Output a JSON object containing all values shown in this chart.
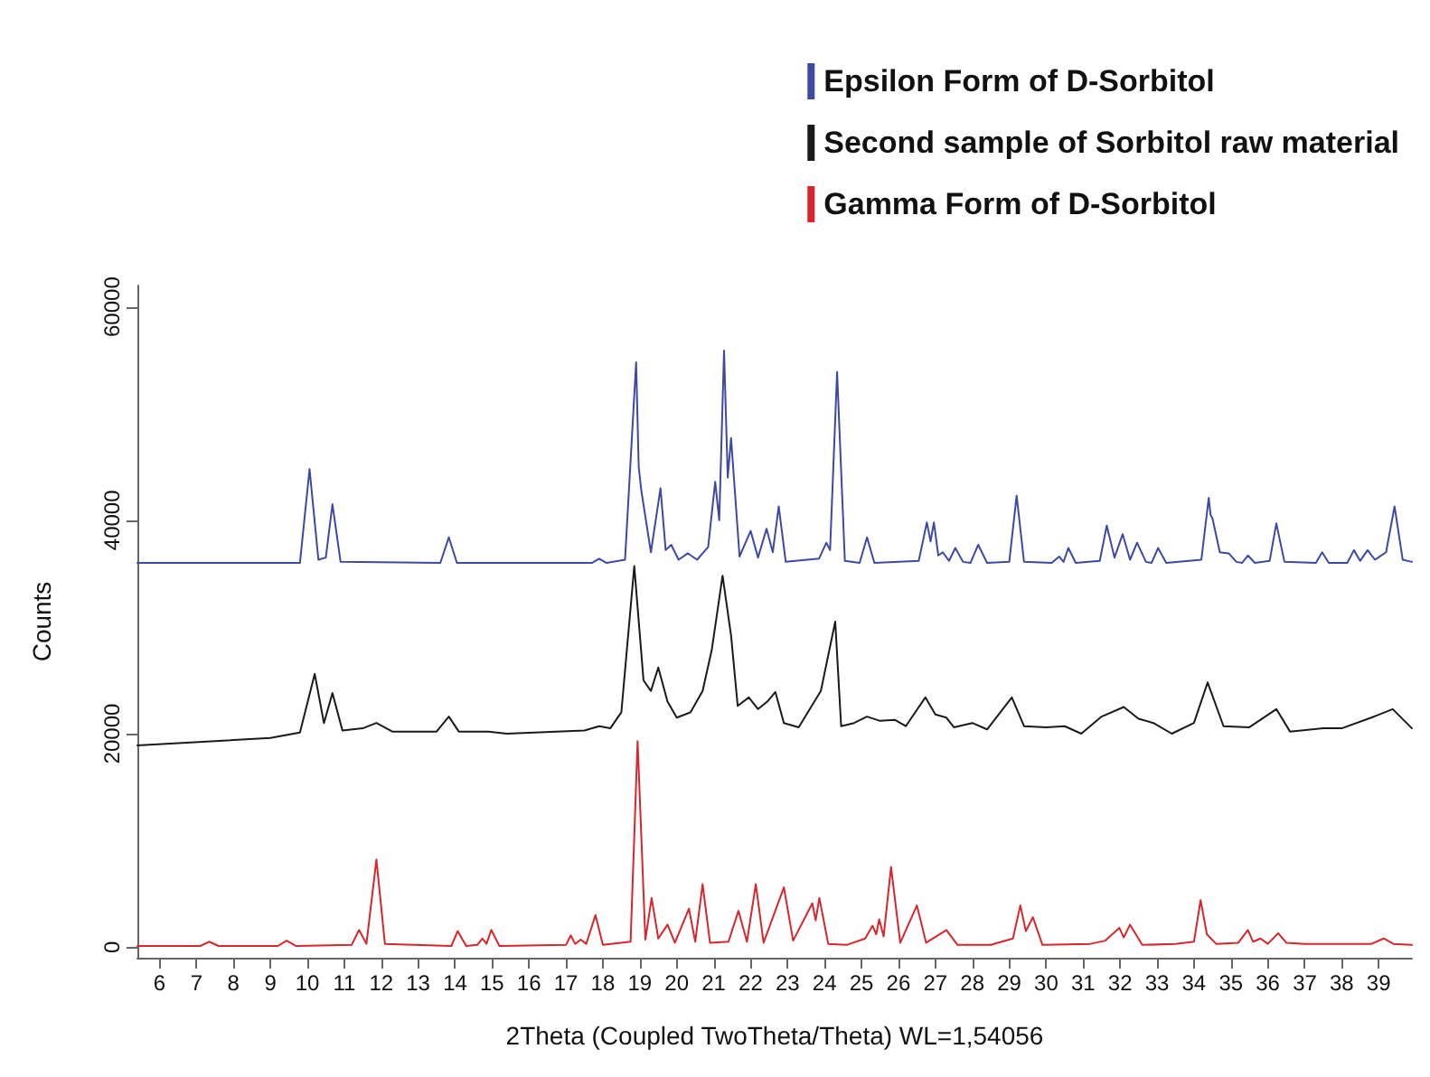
{
  "chart_data": {
    "type": "line",
    "xlabel": "2Theta (Coupled TwoTheta/Theta) WL=1,54056",
    "ylabel": "Counts",
    "xlim": [
      5.4,
      39.9
    ],
    "ylim": [
      -1000,
      62000
    ],
    "xticks": [
      6,
      7,
      8,
      9,
      10,
      11,
      12,
      13,
      14,
      15,
      16,
      17,
      18,
      19,
      20,
      21,
      22,
      23,
      24,
      25,
      26,
      27,
      28,
      29,
      30,
      31,
      32,
      33,
      34,
      35,
      36,
      37,
      38,
      39
    ],
    "yticks": [
      0,
      20000,
      40000,
      60000
    ],
    "grid": false,
    "legend": "top right",
    "marker": "none",
    "line_style": "solid",
    "series": [
      {
        "name": "Epsilon Form of D-Sorbitol",
        "color": "#3c4aa6",
        "x": [
          5.4,
          9.8,
          10.06,
          10.3,
          10.5,
          10.68,
          10.9,
          13.6,
          13.83,
          14.05,
          17.7,
          17.9,
          18.1,
          18.6,
          18.9,
          18.97,
          19.04,
          19.3,
          19.56,
          19.7,
          19.85,
          20.05,
          20.3,
          20.55,
          20.85,
          21.04,
          21.15,
          21.28,
          21.38,
          21.47,
          21.7,
          22.0,
          22.2,
          22.43,
          22.6,
          22.76,
          22.95,
          23.85,
          24.05,
          24.15,
          24.34,
          24.55,
          24.95,
          25.15,
          25.35,
          26.55,
          26.77,
          26.87,
          26.96,
          27.08,
          27.2,
          27.37,
          27.54,
          27.75,
          27.95,
          28.16,
          28.4,
          29.0,
          29.2,
          29.4,
          30.15,
          30.35,
          30.47,
          30.6,
          30.8,
          31.45,
          31.64,
          31.85,
          32.07,
          32.27,
          32.46,
          32.7,
          32.85,
          33.03,
          33.25,
          34.2,
          34.4,
          34.45,
          34.5,
          34.7,
          34.94,
          35.15,
          35.3,
          35.46,
          35.65,
          36.05,
          36.23,
          36.45,
          37.3,
          37.47,
          37.65,
          38.15,
          38.33,
          38.5,
          38.7,
          38.9,
          39.2,
          39.43,
          39.65,
          39.9
        ],
        "values": [
          36000,
          36000,
          44800,
          36300,
          36500,
          41500,
          36100,
          36000,
          38400,
          36000,
          36000,
          36400,
          36000,
          36300,
          54800,
          45000,
          42800,
          37000,
          43000,
          37200,
          37700,
          36300,
          36900,
          36300,
          37500,
          43600,
          40000,
          55900,
          44000,
          47700,
          36600,
          39000,
          36500,
          39200,
          37000,
          41300,
          36100,
          36400,
          37900,
          37200,
          53900,
          36200,
          36000,
          38400,
          36000,
          36200,
          39800,
          38000,
          39800,
          36700,
          37000,
          36200,
          37400,
          36100,
          36000,
          37700,
          36000,
          36100,
          42300,
          36100,
          36000,
          36600,
          36100,
          37400,
          36000,
          36200,
          39500,
          36500,
          38700,
          36300,
          37900,
          36100,
          36000,
          37400,
          36000,
          36300,
          42100,
          40500,
          40200,
          37000,
          36900,
          36100,
          36000,
          36700,
          36000,
          36200,
          39700,
          36100,
          36000,
          37000,
          36000,
          36000,
          37200,
          36200,
          37200,
          36300,
          37000,
          41300,
          36300,
          36100
        ]
      },
      {
        "name": "Second sample of Sorbitol raw material",
        "color": "#1a1a1a",
        "x": [
          5.4,
          9.0,
          9.8,
          10.2,
          10.45,
          10.68,
          10.95,
          11.5,
          11.87,
          12.3,
          13.5,
          13.83,
          14.1,
          14.9,
          15.4,
          17.5,
          17.9,
          18.2,
          18.5,
          18.85,
          19.1,
          19.3,
          19.5,
          19.75,
          20.0,
          20.37,
          20.7,
          20.95,
          21.24,
          21.47,
          21.65,
          21.95,
          22.2,
          22.45,
          22.67,
          22.9,
          23.3,
          23.9,
          24.29,
          24.45,
          24.8,
          25.15,
          25.5,
          25.9,
          26.2,
          26.73,
          27.0,
          27.3,
          27.5,
          28.0,
          28.4,
          29.07,
          29.4,
          30.0,
          30.5,
          30.95,
          31.5,
          32.1,
          32.5,
          32.9,
          33.4,
          34.0,
          34.37,
          34.8,
          35.5,
          36.23,
          36.6,
          37.5,
          38.0,
          38.8,
          39.38,
          39.9
        ],
        "values": [
          18900,
          19600,
          20100,
          25600,
          21000,
          23800,
          20300,
          20500,
          21000,
          20200,
          20200,
          21600,
          20200,
          20200,
          20000,
          20300,
          20700,
          20500,
          22000,
          35700,
          25000,
          24000,
          26200,
          23000,
          21500,
          22000,
          24000,
          27900,
          34800,
          29200,
          22600,
          23400,
          22300,
          23000,
          23900,
          21000,
          20600,
          24000,
          30500,
          20700,
          21000,
          21600,
          21200,
          21300,
          20700,
          23400,
          21800,
          21500,
          20600,
          21000,
          20400,
          23400,
          20700,
          20600,
          20700,
          20000,
          21600,
          22500,
          21400,
          21000,
          20000,
          21000,
          24800,
          20700,
          20600,
          22300,
          20200,
          20500,
          20500,
          21500,
          22300,
          20500
        ]
      },
      {
        "name": "Gamma Form of D-Sorbitol",
        "color": "#d8262c",
        "x": [
          5.4,
          7.1,
          7.34,
          7.6,
          9.2,
          9.44,
          9.7,
          11.2,
          11.4,
          11.6,
          11.87,
          12.1,
          13.9,
          14.07,
          14.3,
          14.6,
          14.74,
          14.85,
          14.98,
          15.2,
          17.0,
          17.13,
          17.25,
          17.4,
          17.55,
          17.8,
          18.0,
          18.75,
          18.94,
          19.15,
          19.32,
          19.5,
          19.75,
          19.95,
          20.33,
          20.5,
          20.7,
          20.9,
          21.4,
          21.67,
          21.9,
          22.14,
          22.35,
          22.9,
          23.15,
          23.67,
          23.76,
          23.86,
          24.1,
          24.6,
          25.1,
          25.3,
          25.4,
          25.48,
          25.6,
          25.8,
          26.05,
          26.5,
          26.75,
          27.3,
          27.6,
          28.5,
          29.1,
          29.3,
          29.45,
          29.64,
          29.9,
          31.2,
          31.6,
          31.98,
          32.1,
          32.27,
          32.6,
          33.5,
          34.0,
          34.18,
          34.35,
          34.6,
          35.2,
          35.46,
          35.6,
          35.8,
          36.0,
          36.28,
          36.5,
          37.0,
          38.0,
          38.8,
          39.14,
          39.4,
          39.9
        ],
        "values": [
          100,
          100,
          500,
          100,
          100,
          600,
          100,
          200,
          1600,
          300,
          8200,
          300,
          100,
          1500,
          100,
          200,
          800,
          300,
          1600,
          100,
          200,
          1100,
          300,
          700,
          300,
          3000,
          200,
          500,
          19300,
          700,
          4600,
          800,
          2100,
          400,
          3600,
          500,
          5900,
          400,
          500,
          3400,
          500,
          5900,
          400,
          5600,
          600,
          4100,
          2500,
          4600,
          300,
          200,
          800,
          2000,
          1200,
          2600,
          1000,
          7500,
          400,
          3900,
          400,
          1600,
          200,
          200,
          800,
          3900,
          1500,
          2800,
          200,
          300,
          600,
          1800,
          900,
          2100,
          200,
          300,
          500,
          4400,
          1200,
          300,
          400,
          1600,
          500,
          800,
          300,
          1300,
          400,
          300,
          300,
          300,
          800,
          300,
          200
        ]
      }
    ]
  }
}
